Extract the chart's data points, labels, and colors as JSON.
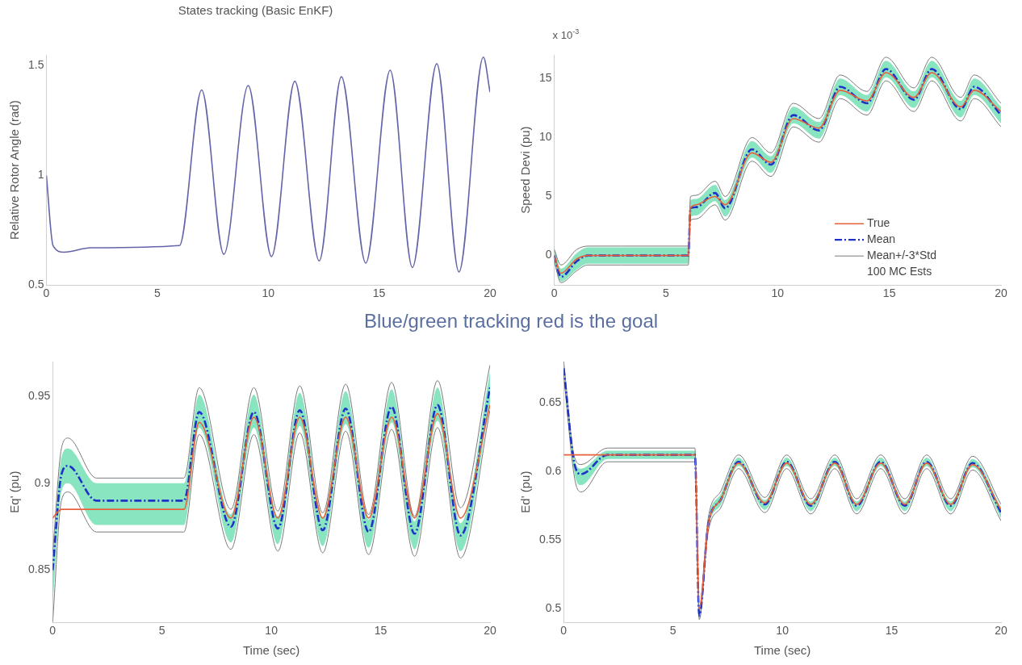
{
  "chart_data": [
    {
      "type": "line",
      "title": "States tracking (Basic EnKF)",
      "ylabel": "Relative Rotor Angle (rad)",
      "xlim": [
        0,
        20
      ],
      "xticks": [
        0,
        5,
        10,
        15,
        20
      ],
      "ylim": [
        0.5,
        1.55
      ],
      "yticks": [
        0.5,
        1,
        1.5
      ],
      "x": [
        0,
        0.3,
        0.8,
        2,
        6,
        7.0,
        8.0,
        9.1,
        10.15,
        11.2,
        12.3,
        13.3,
        14.4,
        15.5,
        16.5,
        17.6,
        18.6,
        19.7,
        20
      ],
      "series": [
        {
          "color": "#6464a8",
          "values": [
            1.0,
            0.68,
            0.65,
            0.67,
            0.68,
            1.39,
            0.64,
            1.41,
            0.63,
            1.43,
            0.61,
            1.45,
            0.6,
            1.48,
            0.58,
            1.51,
            0.56,
            1.54,
            1.38
          ]
        }
      ]
    },
    {
      "type": "line",
      "ylabel": "Speed Devi (pu)",
      "xlim": [
        0,
        20
      ],
      "xticks": [
        0,
        5,
        10,
        15,
        20
      ],
      "ylim": [
        -2.5,
        17
      ],
      "yticks": [
        0,
        5,
        10,
        15
      ],
      "legend": "bottom right",
      "annotations": [
        "x 10$^{-3}$",
        "100 MC Ests"
      ],
      "x": [
        0,
        0.3,
        1,
        1.5,
        3,
        6,
        6.1,
        6.35,
        7.2,
        7.65,
        8.85,
        9.7,
        10.7,
        11.85,
        12.8,
        14.0,
        14.85,
        16.1,
        16.9,
        18.2,
        18.8,
        20
      ],
      "series": [
        {
          "name": "True",
          "color": "#e8603c",
          "values": [
            0,
            -1.5,
            -0.3,
            0,
            0,
            0,
            4.0,
            4.3,
            5.0,
            4.3,
            8.7,
            7.9,
            11.6,
            10.8,
            14.0,
            13.1,
            15.5,
            13.4,
            15.5,
            12.6,
            14.0,
            12.2
          ]
        },
        {
          "name": "Mean",
          "color": "#1f32c8",
          "line_style": "dashed",
          "values": [
            0,
            -1.8,
            -0.5,
            0,
            0,
            0,
            4.0,
            4.1,
            5.3,
            4.0,
            9.0,
            7.7,
            11.9,
            10.6,
            14.3,
            12.9,
            15.8,
            13.2,
            15.8,
            12.4,
            14.3,
            11.9
          ],
          "upper": [
            0.7,
            -1.1,
            0.2,
            0.7,
            0.7,
            0.7,
            4.7,
            4.8,
            6.0,
            4.7,
            9.7,
            8.4,
            12.6,
            11.3,
            15.0,
            13.6,
            16.5,
            13.9,
            16.5,
            13.1,
            15.0,
            12.6
          ],
          "lower": [
            -0.7,
            -2.2,
            -1.2,
            -0.7,
            -0.7,
            -0.7,
            3.3,
            3.4,
            4.6,
            3.3,
            8.3,
            7.0,
            11.2,
            9.9,
            13.6,
            12.2,
            15.1,
            12.5,
            15.1,
            11.7,
            13.6,
            11.2
          ]
        },
        {
          "name": "Mean+/-3*Std",
          "color": "#7a7a7a",
          "values": [
            0.5,
            -0.8,
            0.5,
            0.8,
            0.8,
            0.8,
            5.0,
            5.1,
            6.3,
            5.0,
            10.0,
            8.7,
            12.9,
            11.6,
            15.3,
            13.9,
            16.8,
            14.2,
            16.8,
            13.4,
            15.3,
            12.9
          ]
        },
        {
          "color": "#7a7a7a",
          "values": [
            -0.5,
            -2.3,
            -1.3,
            -0.8,
            -0.8,
            -0.8,
            3.0,
            3.1,
            4.3,
            3.0,
            8.0,
            6.7,
            10.9,
            9.6,
            13.3,
            11.9,
            14.8,
            12.2,
            14.8,
            11.4,
            13.3,
            10.9
          ]
        }
      ]
    },
    {
      "type": "line",
      "title": "Blue/green tracking red is the goal",
      "xlabel": "Time (sec)",
      "ylabel": "Eq' (pu)",
      "xlim": [
        0,
        20
      ],
      "xticks": [
        0,
        5,
        10,
        15,
        20
      ],
      "ylim": [
        0.82,
        0.97
      ],
      "yticks": [
        0.85,
        0.9,
        0.95
      ],
      "x": [
        0,
        0.4,
        0.7,
        2,
        6,
        6.7,
        8.15,
        9.2,
        10.3,
        11.3,
        12.35,
        13.4,
        14.45,
        15.5,
        16.55,
        17.6,
        18.65,
        20
      ],
      "series": [
        {
          "color": "#e8603c",
          "values": [
            0.88,
            0.885,
            0.885,
            0.885,
            0.885,
            0.935,
            0.88,
            0.938,
            0.88,
            0.938,
            0.88,
            0.938,
            0.88,
            0.938,
            0.88,
            0.94,
            0.88,
            0.945
          ]
        },
        {
          "color": "#1f32c8",
          "line_style": "dashed",
          "values": [
            0.85,
            0.905,
            0.91,
            0.89,
            0.89,
            0.941,
            0.875,
            0.941,
            0.874,
            0.942,
            0.873,
            0.943,
            0.872,
            0.944,
            0.871,
            0.945,
            0.87,
            0.955
          ],
          "upper": [
            0.855,
            0.915,
            0.92,
            0.9,
            0.9,
            0.951,
            0.882,
            0.951,
            0.881,
            0.952,
            0.88,
            0.953,
            0.879,
            0.954,
            0.878,
            0.955,
            0.877,
            0.964
          ],
          "lower": [
            0.83,
            0.895,
            0.9,
            0.876,
            0.876,
            0.932,
            0.866,
            0.932,
            0.865,
            0.933,
            0.864,
            0.934,
            0.863,
            0.935,
            0.862,
            0.936,
            0.861,
            0.946
          ]
        },
        {
          "color": "#7a7a7a",
          "values": [
            0.86,
            0.92,
            0.926,
            0.903,
            0.903,
            0.955,
            0.885,
            0.955,
            0.884,
            0.956,
            0.883,
            0.957,
            0.882,
            0.958,
            0.881,
            0.959,
            0.886,
            0.968
          ]
        },
        {
          "color": "#7a7a7a",
          "values": [
            0.82,
            0.89,
            0.895,
            0.872,
            0.872,
            0.928,
            0.862,
            0.928,
            0.861,
            0.929,
            0.86,
            0.93,
            0.859,
            0.931,
            0.858,
            0.932,
            0.857,
            0.942
          ]
        }
      ]
    },
    {
      "type": "line",
      "xlabel": "Time (sec)",
      "ylabel": "Ed' (pu)",
      "xlim": [
        0,
        20
      ],
      "xticks": [
        0,
        5,
        10,
        15,
        20
      ],
      "ylim": [
        0.49,
        0.68
      ],
      "yticks": [
        0.5,
        0.55,
        0.6,
        0.65
      ],
      "x": [
        0,
        0.5,
        0.8,
        2,
        6,
        6.2,
        6.6,
        7.2,
        8.0,
        9.2,
        10.2,
        11.3,
        12.4,
        13.4,
        14.5,
        15.6,
        16.6,
        17.7,
        18.7,
        20
      ],
      "series": [
        {
          "color": "#e8603c",
          "values": [
            0.612,
            0.612,
            0.612,
            0.612,
            0.612,
            0.5,
            0.56,
            0.58,
            0.606,
            0.577,
            0.606,
            0.576,
            0.606,
            0.576,
            0.606,
            0.576,
            0.606,
            0.576,
            0.605,
            0.572
          ]
        },
        {
          "color": "#1f32c8",
          "line_style": "dashed",
          "values": [
            0.675,
            0.605,
            0.598,
            0.612,
            0.612,
            0.495,
            0.56,
            0.58,
            0.607,
            0.576,
            0.607,
            0.575,
            0.607,
            0.575,
            0.607,
            0.575,
            0.607,
            0.575,
            0.606,
            0.57
          ],
          "upper": [
            0.678,
            0.608,
            0.602,
            0.615,
            0.615,
            0.498,
            0.563,
            0.584,
            0.61,
            0.579,
            0.61,
            0.578,
            0.61,
            0.578,
            0.61,
            0.578,
            0.61,
            0.578,
            0.609,
            0.574
          ],
          "lower": [
            0.672,
            0.598,
            0.59,
            0.609,
            0.609,
            0.493,
            0.557,
            0.576,
            0.604,
            0.572,
            0.604,
            0.571,
            0.604,
            0.571,
            0.604,
            0.571,
            0.604,
            0.571,
            0.603,
            0.566
          ]
        },
        {
          "color": "#7a7a7a",
          "values": [
            0.68,
            0.61,
            0.605,
            0.617,
            0.617,
            0.5,
            0.565,
            0.586,
            0.612,
            0.581,
            0.612,
            0.58,
            0.612,
            0.58,
            0.612,
            0.58,
            0.612,
            0.58,
            0.611,
            0.576
          ]
        },
        {
          "color": "#7a7a7a",
          "values": [
            0.67,
            0.595,
            0.585,
            0.607,
            0.607,
            0.492,
            0.555,
            0.574,
            0.602,
            0.57,
            0.602,
            0.569,
            0.602,
            0.569,
            0.602,
            0.569,
            0.602,
            0.569,
            0.601,
            0.564
          ]
        }
      ]
    }
  ]
}
